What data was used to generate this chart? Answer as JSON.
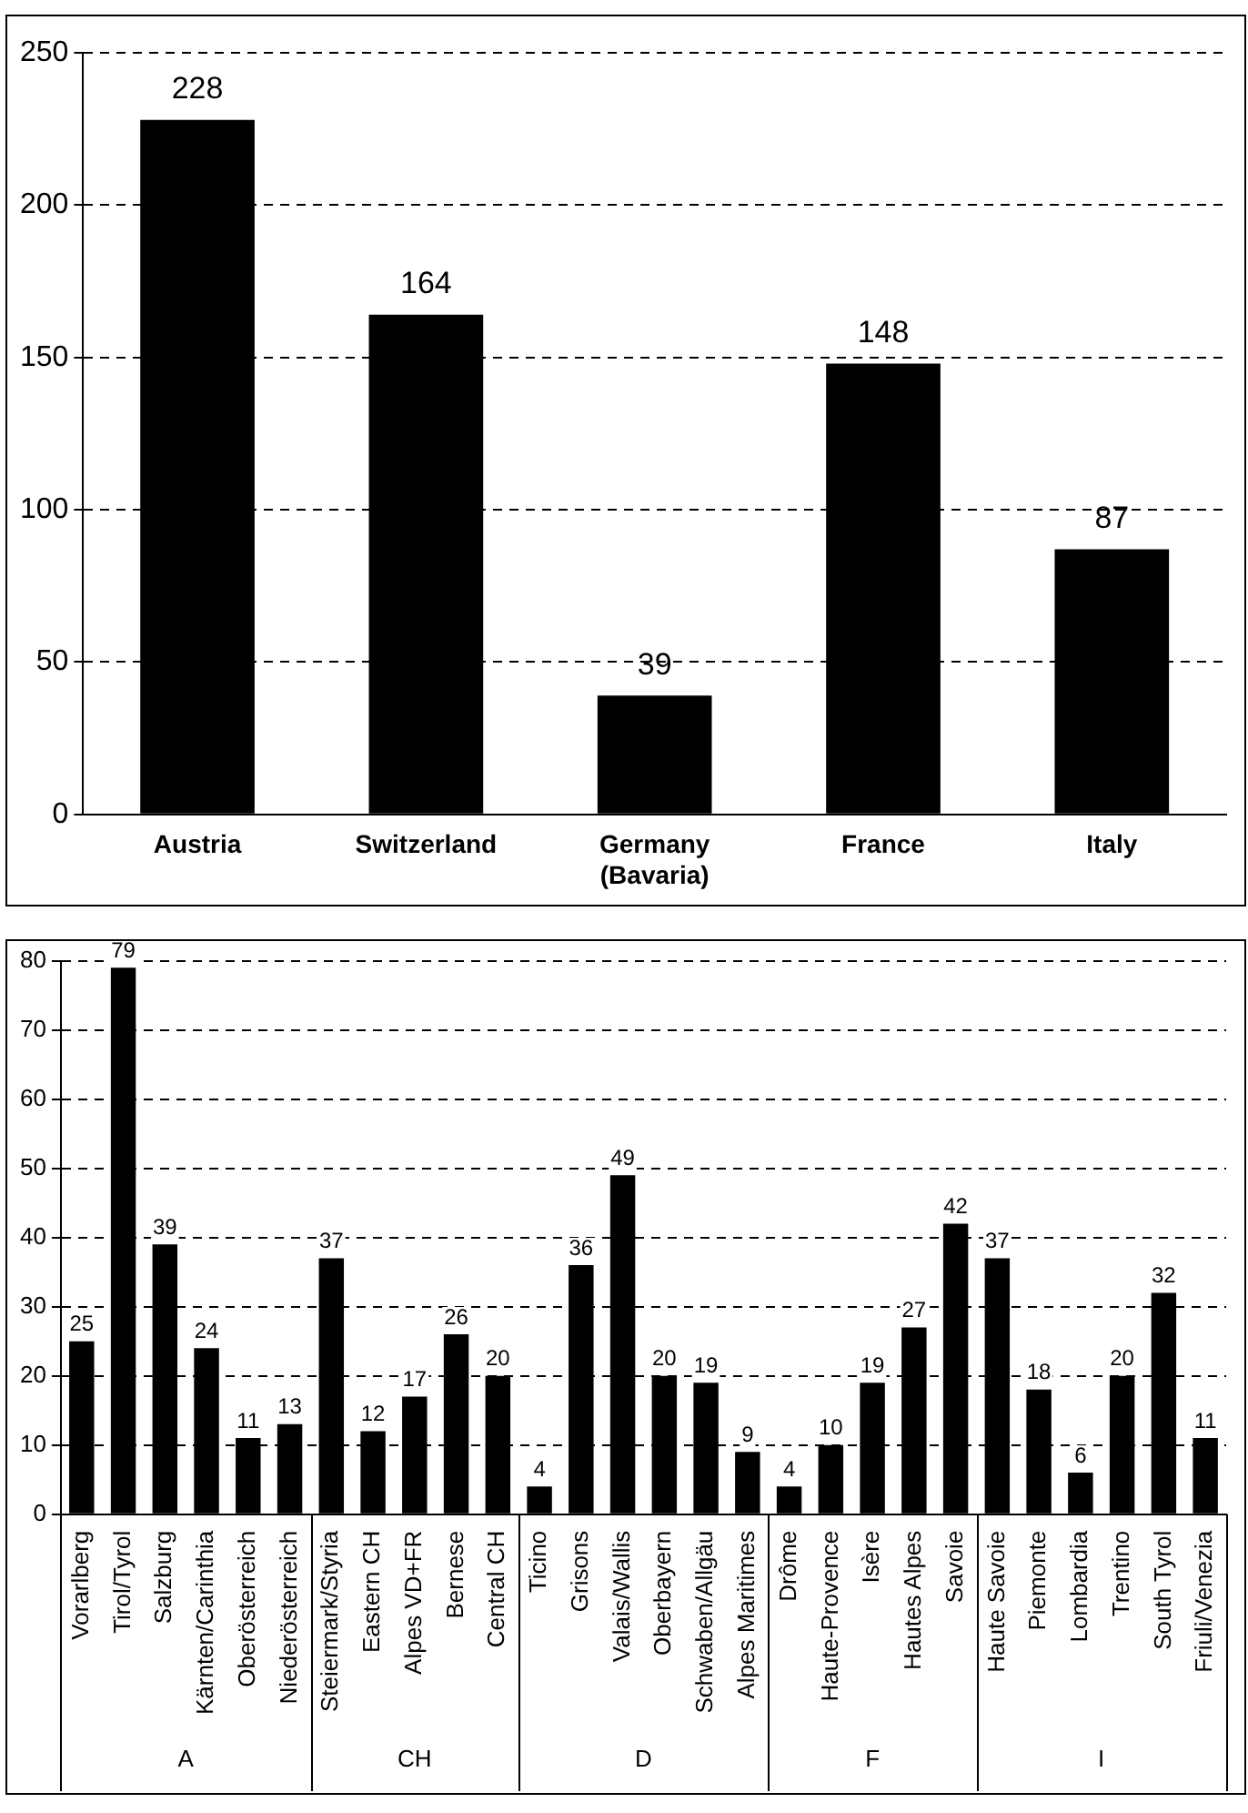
{
  "chart_data": [
    {
      "type": "bar",
      "categories": [
        "Austria",
        "Switzerland",
        "Germany (Bavaria)",
        "France",
        "Italy"
      ],
      "values": [
        228,
        164,
        39,
        148,
        87
      ],
      "color": "#000000",
      "ylim": [
        0,
        250
      ],
      "yticks": [
        0,
        50,
        100,
        150,
        200,
        250
      ],
      "grid": "y",
      "line_style": "dashed",
      "data_labels": true,
      "legend": false
    },
    {
      "type": "bar",
      "categories": [
        "Vorarlberg",
        "Tirol/Tyrol",
        "Salzburg",
        "Kärnten/Carinthia",
        "Oberösterreich",
        "Niederösterreich",
        "Steiermark/Styria",
        "Eastern CH",
        "Alpes VD+FR",
        "Bernese",
        "Central CH",
        "Ticino",
        "Grisons",
        "Valais/Wallis",
        "Oberbayern",
        "Schwaben/Allgäu",
        "Alpes Maritimes",
        "Drôme",
        "Haute-Provence",
        "Isère",
        "Hautes Alpes",
        "Savoie",
        "Haute Savoie",
        "Piemonte",
        "Lombardia",
        "Trentino",
        "South Tyrol",
        "Friuli/Venezia"
      ],
      "values": [
        25,
        79,
        39,
        24,
        11,
        13,
        37,
        12,
        17,
        26,
        20,
        4,
        36,
        49,
        20,
        19,
        9,
        4,
        10,
        19,
        27,
        42,
        37,
        18,
        6,
        20,
        32,
        11
      ],
      "color": "#000000",
      "ylim": [
        0,
        80
      ],
      "yticks": [
        0,
        10,
        20,
        30,
        40,
        50,
        60,
        70,
        80
      ],
      "grid": "y",
      "line_style": "dashed",
      "data_labels": true,
      "legend": false,
      "annotations": [
        "A",
        "CH",
        "D",
        "F",
        "I"
      ]
    }
  ]
}
